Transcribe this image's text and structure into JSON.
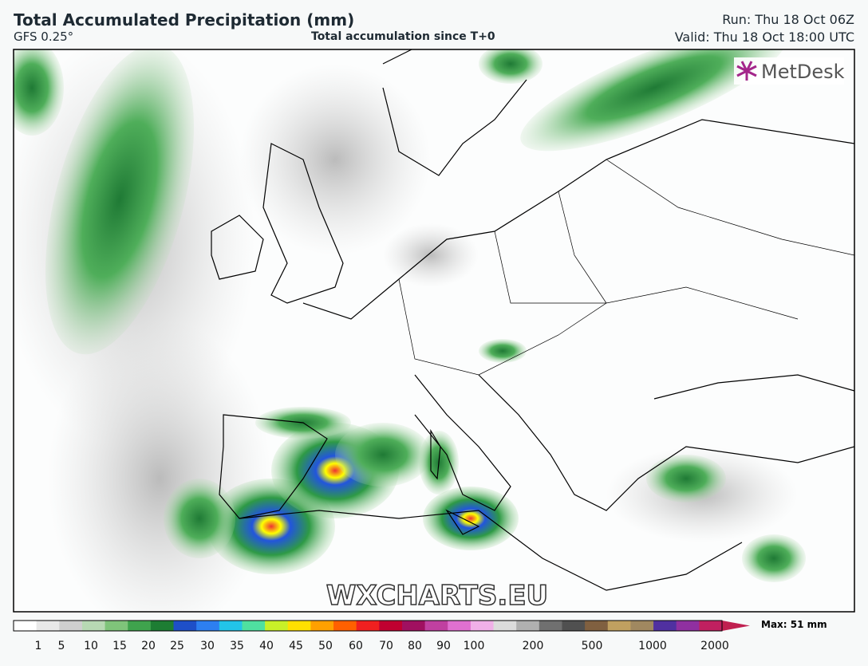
{
  "header": {
    "title": "Total Accumulated Precipitation (mm)",
    "model": "GFS 0.25°",
    "subtitle": "Total accumulation since T+0",
    "run": "Run: Thu 18 Oct 06Z",
    "valid": "Valid: Thu 18 Oct 18:00 UTC"
  },
  "map": {
    "logo": "MetDesk",
    "watermark": "WXCHARTS.EU"
  },
  "colorbar": {
    "ticks": [
      "1",
      "5",
      "10",
      "15",
      "20",
      "25",
      "30",
      "35",
      "40",
      "45",
      "50",
      "60",
      "70",
      "80",
      "90",
      "100",
      "200",
      "500",
      "1000",
      "2000"
    ],
    "max": "Max: 51 mm"
  }
}
